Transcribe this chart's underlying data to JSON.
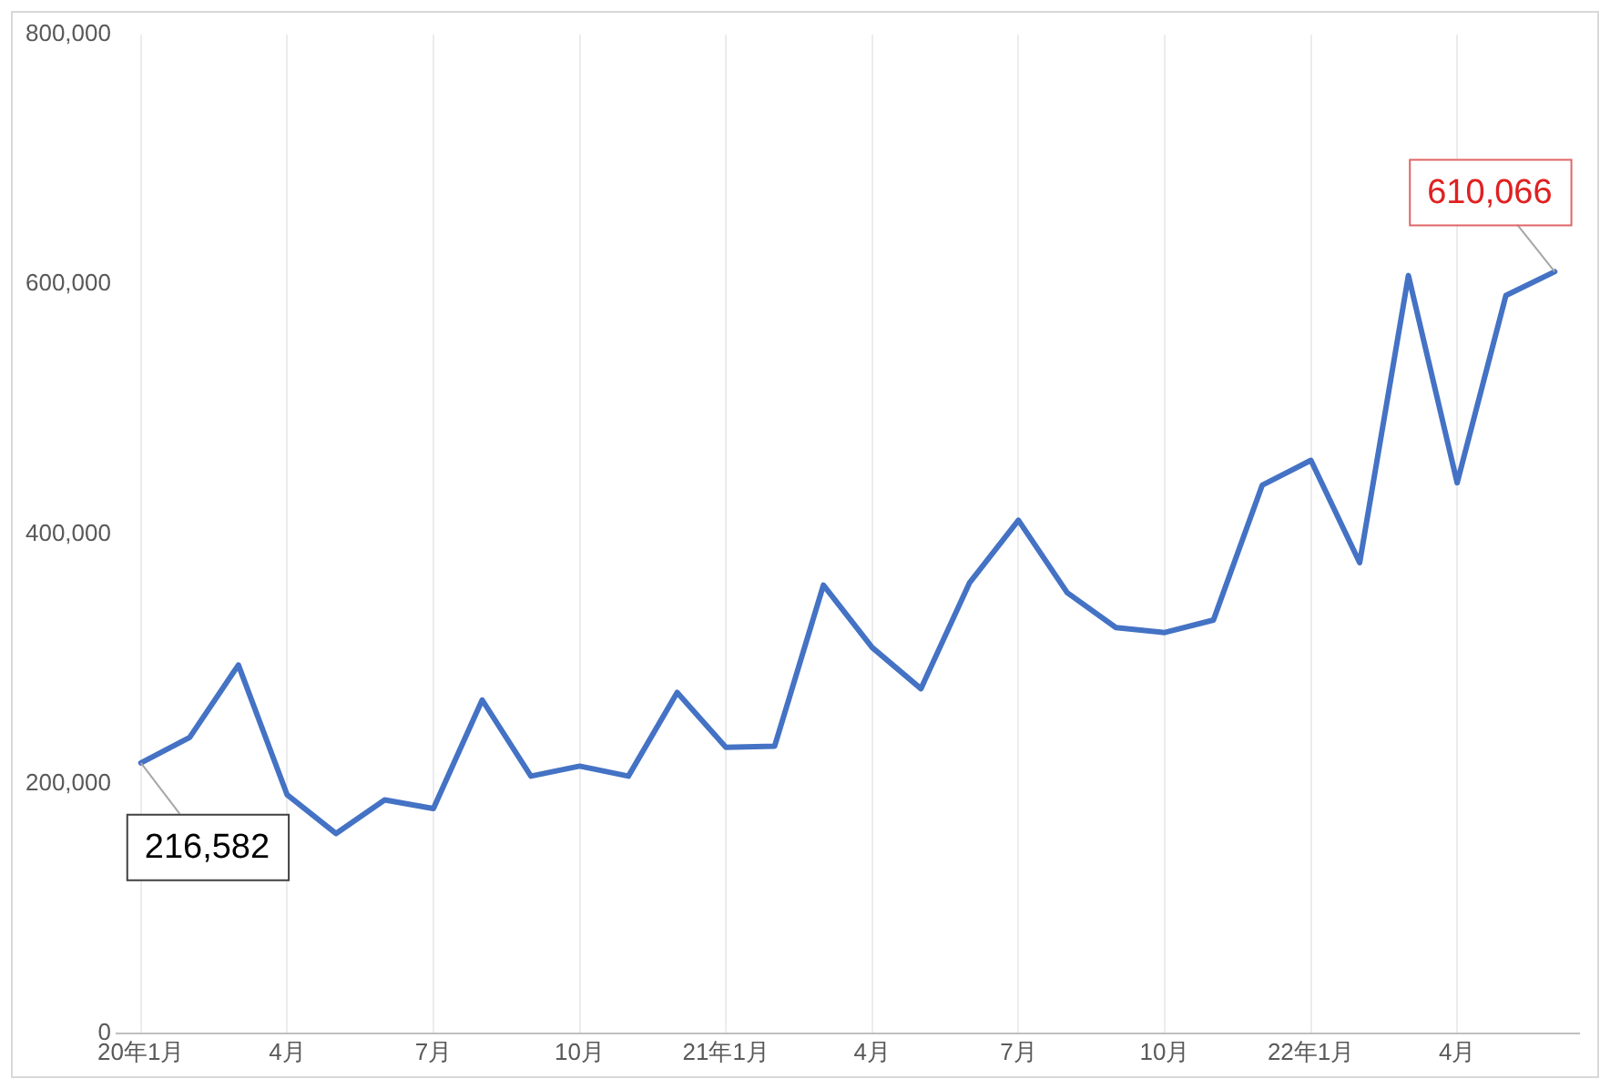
{
  "chart_data": {
    "type": "line",
    "categories": [
      "20年1月",
      null,
      null,
      "4月",
      null,
      null,
      "7月",
      null,
      null,
      "10月",
      null,
      null,
      "21年1月",
      null,
      null,
      "4月",
      null,
      null,
      "7月",
      null,
      null,
      "10月",
      null,
      null,
      "22年1月",
      null,
      null,
      "4月",
      null,
      null
    ],
    "series": [
      {
        "color": "#4472c4",
        "values": [
          216582,
          237000,
          295000,
          191000,
          160000,
          187000,
          180000,
          267000,
          206000,
          214000,
          206000,
          273000,
          229000,
          230000,
          359000,
          309000,
          276000,
          361000,
          411000,
          353000,
          325000,
          321000,
          331000,
          439000,
          459000,
          377000,
          607000,
          441000,
          591000,
          610066
        ],
        "value_labels": [
          "216,582",
          null,
          null,
          null,
          null,
          null,
          null,
          null,
          null,
          null,
          null,
          null,
          null,
          null,
          null,
          null,
          null,
          null,
          null,
          null,
          null,
          null,
          null,
          null,
          null,
          null,
          null,
          null,
          null,
          "610,066"
        ]
      }
    ],
    "ylim": [
      0,
      800000
    ],
    "yticks": [
      0,
      {
        "value": 200000,
        "label": "200,000"
      },
      {
        "value": 400000,
        "label": "400,000"
      },
      {
        "value": 600000,
        "label": "600,000"
      },
      {
        "value": 800000,
        "label": "800,000"
      }
    ],
    "grid": "x",
    "legend": false,
    "marker": "none",
    "line_style": "solid"
  }
}
